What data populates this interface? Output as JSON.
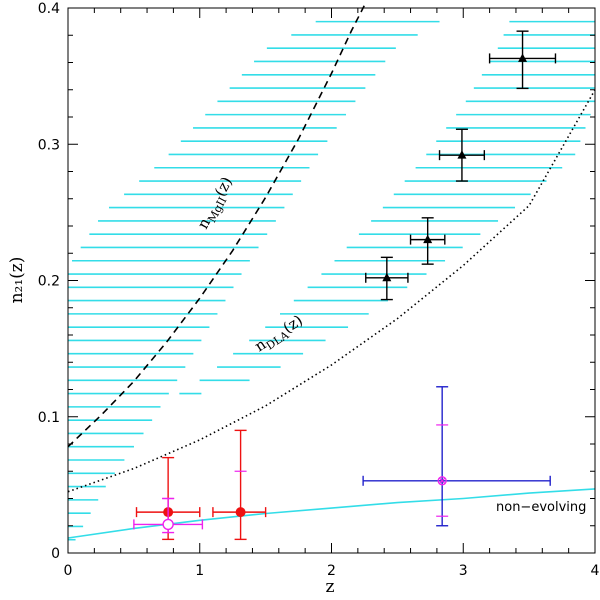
{
  "chart_data": {
    "type": "scatter",
    "title": "",
    "xlabel": "z",
    "ylabel": "n₂₁(z)",
    "xlim": [
      0,
      4
    ],
    "ylim": [
      0,
      0.4
    ],
    "x_ticks": [
      "0",
      "1",
      "2",
      "3",
      "4"
    ],
    "y_ticks": [
      "0",
      "0.1",
      "0.2",
      "0.3",
      "0.4"
    ],
    "colors": {
      "band": "#33dde8",
      "black": "#000000",
      "red": "#ee1111",
      "magenta": "#ee22ee",
      "blue": "#2222cc",
      "curve": "#33dde8"
    },
    "curves": [
      {
        "name": "MgII",
        "label": "n_MgII(z)",
        "label_main": "n",
        "label_sub": "MgII",
        "label_tail": "(z)",
        "style": "dashed",
        "x": [
          0,
          0.25,
          0.5,
          0.75,
          1.0,
          1.25,
          1.5,
          1.75,
          2.0,
          2.15,
          2.25
        ],
        "y": [
          0.078,
          0.101,
          0.126,
          0.155,
          0.187,
          0.222,
          0.261,
          0.304,
          0.352,
          0.383,
          0.402
        ]
      },
      {
        "name": "DLA",
        "label": "n_DLA(z)",
        "label_main": "n",
        "label_sub": "DLA",
        "label_tail": "(z)",
        "style": "dotted",
        "x": [
          0,
          0.5,
          1.0,
          1.5,
          2.0,
          2.5,
          3.0,
          3.5,
          4.0
        ],
        "y": [
          0.045,
          0.062,
          0.083,
          0.108,
          0.138,
          0.172,
          0.211,
          0.255,
          0.34
        ]
      },
      {
        "name": "non-evolving",
        "label": "non−evolving",
        "style": "solid",
        "x": [
          0,
          0.5,
          1.0,
          1.5,
          2.0,
          2.5,
          3.0,
          3.5,
          4.0
        ],
        "y": [
          0.011,
          0.018,
          0.024,
          0.029,
          0.033,
          0.037,
          0.04,
          0.044,
          0.047
        ]
      }
    ],
    "bands": [
      {
        "name": "MgII band",
        "y_start": 0.0,
        "y_end": 0.39,
        "step": 0.00975,
        "x_lo": [
          0.0,
          0.0,
          0.0,
          0.0,
          0.0,
          0.0,
          0.27,
          0.74,
          1.12,
          1.5,
          1.88
        ],
        "x_hi": [
          0.0,
          0.3,
          0.59,
          0.85,
          1.1,
          1.35,
          1.62,
          1.88,
          2.17,
          2.48,
          2.82
        ],
        "y_knots": [
          0.0,
          0.051,
          0.09,
          0.13,
          0.17,
          0.21,
          0.25,
          0.29,
          0.33,
          0.37,
          0.39
        ]
      },
      {
        "name": "DLA band",
        "y_start": 0.0,
        "y_end": 0.39,
        "step": 0.00975,
        "x_lo": [
          0.0,
          0.0,
          0.42,
          1.05,
          1.55,
          1.98,
          2.36,
          2.7,
          3.01,
          3.26,
          3.35
        ],
        "x_hi": [
          0.0,
          0.0,
          0.0,
          1.5,
          2.2,
          2.8,
          3.35,
          3.84,
          4.0,
          4.0,
          4.0
        ],
        "y_knots": [
          0.0,
          0.058,
          0.09,
          0.13,
          0.17,
          0.21,
          0.25,
          0.29,
          0.33,
          0.37,
          0.39
        ]
      }
    ],
    "series": [
      {
        "name": "DLA points",
        "marker": "triangle",
        "color": "#000000",
        "points": [
          {
            "x": 2.42,
            "y": 0.202,
            "xerr": [
              0.16,
              0.16
            ],
            "yerr": [
              0.016,
              0.015
            ]
          },
          {
            "x": 2.73,
            "y": 0.23,
            "xerr": [
              0.13,
              0.13
            ],
            "yerr": [
              0.018,
              0.016
            ]
          },
          {
            "x": 2.99,
            "y": 0.292,
            "xerr": [
              0.17,
              0.17
            ],
            "yerr": [
              0.019,
              0.019
            ]
          },
          {
            "x": 3.45,
            "y": 0.363,
            "xerr": [
              0.25,
              0.25
            ],
            "yerr": [
              0.022,
              0.02
            ]
          }
        ]
      },
      {
        "name": "red points",
        "marker": "filled-circle",
        "color": "#ee1111",
        "points": [
          {
            "x": 0.76,
            "y": 0.03,
            "xerr": [
              0.24,
              0.24
            ],
            "yerr": [
              0.02,
              0.04
            ]
          },
          {
            "x": 1.31,
            "y": 0.03,
            "xerr": [
              0.21,
              0.19
            ],
            "yerr": [
              0.02,
              0.06
            ]
          }
        ]
      },
      {
        "name": "magenta point",
        "marker": "open-circle",
        "color": "#ee22ee",
        "points": [
          {
            "x": 0.76,
            "y": 0.021,
            "xerr": [
              0.26,
              0.26
            ],
            "yerr": [
              0.006,
              0.019
            ]
          }
        ]
      },
      {
        "name": "blue point",
        "marker": "cross-circle",
        "color": "#2222cc",
        "points": [
          {
            "x": 2.84,
            "y": 0.053,
            "xerr": [
              0.6,
              0.82
            ],
            "yerr": [
              0.033,
              0.069
            ]
          }
        ]
      }
    ]
  }
}
